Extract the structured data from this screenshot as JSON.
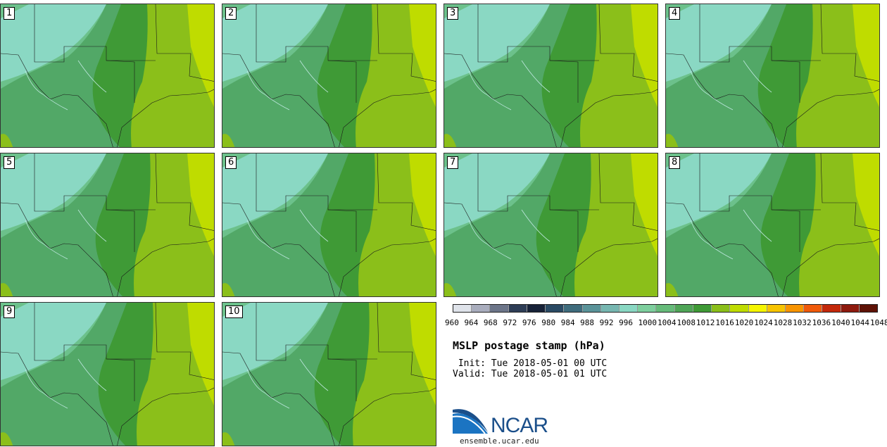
{
  "title": "MSLP postage stamp (hPa)",
  "init": " Init: Tue 2018-05-01 00 UTC",
  "valid": "Valid: Tue 2018-05-01 01 UTC",
  "org": "NCAR",
  "url": "ensemble.ucar.edu",
  "members": [
    "1",
    "2",
    "3",
    "4",
    "5",
    "6",
    "7",
    "8",
    "9",
    "10"
  ],
  "colorbar": {
    "ticks": [
      "960",
      "964",
      "968",
      "972",
      "976",
      "980",
      "984",
      "988",
      "992",
      "996",
      "1000",
      "1004",
      "1008",
      "1012",
      "1016",
      "1020",
      "1024",
      "1028",
      "1032",
      "1036",
      "1040",
      "1044",
      "1048"
    ],
    "colors": [
      "#dfe3ea",
      "#a9adbd",
      "#6c7589",
      "#2e3d56",
      "#172238",
      "#2a4a64",
      "#3f6c7d",
      "#5a9399",
      "#77b7b1",
      "#8ad8c3",
      "#7ecf9e",
      "#66bb7a",
      "#4fa557",
      "#3f9a36",
      "#8bbf1a",
      "#bfdc00",
      "#f5f500",
      "#f7c400",
      "#f89400",
      "#f05a0a",
      "#c3280a",
      "#8e1a0e",
      "#5e1206"
    ]
  },
  "map_colors": {
    "p1000": "#8ad8c3",
    "p1004": "#6cc18b",
    "p1008": "#52a867",
    "p1012": "#3f9a36",
    "p1016": "#8bbf1a",
    "p1020": "#bfdc00"
  }
}
